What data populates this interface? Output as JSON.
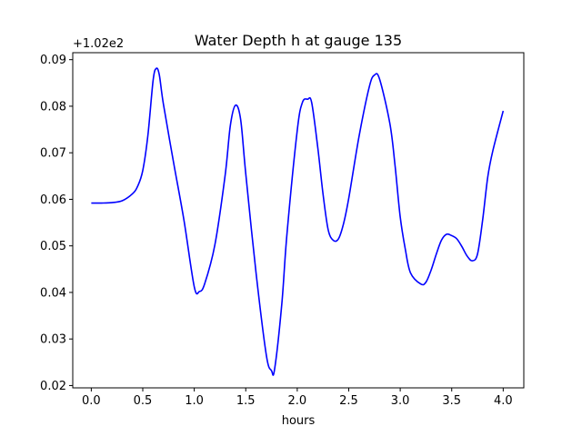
{
  "chart_data": {
    "type": "line",
    "title": "Water Depth h at gauge 135",
    "xlabel": "hours",
    "ylabel": "",
    "y_offset_label": "+1.02e2",
    "xlim": [
      -0.18,
      4.2
    ],
    "ylim": [
      0.0195,
      0.0915
    ],
    "x_ticks": [
      0.0,
      0.5,
      1.0,
      1.5,
      2.0,
      2.5,
      3.0,
      3.5,
      4.0
    ],
    "x_tick_labels": [
      "0.0",
      "0.5",
      "1.0",
      "1.5",
      "2.0",
      "2.5",
      "3.0",
      "3.5",
      "4.0"
    ],
    "y_ticks": [
      0.02,
      0.03,
      0.04,
      0.05,
      0.06,
      0.07,
      0.08,
      0.09
    ],
    "y_tick_labels": [
      "0.02",
      "0.03",
      "0.04",
      "0.05",
      "0.06",
      "0.07",
      "0.08",
      "0.09"
    ],
    "grid": false,
    "line_color": "#0000ff",
    "series": [
      {
        "x": [
          0.0,
          0.1,
          0.2,
          0.3,
          0.4,
          0.45,
          0.5,
          0.55,
          0.6,
          0.63,
          0.66,
          0.7,
          0.8,
          0.9,
          1.0,
          1.05,
          1.1,
          1.2,
          1.3,
          1.35,
          1.4,
          1.45,
          1.5,
          1.6,
          1.7,
          1.75,
          1.78,
          1.85,
          1.9,
          2.0,
          2.05,
          2.1,
          2.14,
          2.2,
          2.25,
          2.3,
          2.35,
          2.4,
          2.45,
          2.5,
          2.6,
          2.7,
          2.75,
          2.8,
          2.9,
          2.95,
          3.0,
          3.05,
          3.1,
          3.2,
          3.25,
          3.3,
          3.35,
          3.4,
          3.45,
          3.5,
          3.55,
          3.6,
          3.65,
          3.7,
          3.75,
          3.8,
          3.85,
          3.9,
          4.0
        ],
        "y": [
          0.0592,
          0.0592,
          0.0593,
          0.0597,
          0.0612,
          0.0628,
          0.0662,
          0.0738,
          0.0855,
          0.0881,
          0.0868,
          0.0805,
          0.0678,
          0.0555,
          0.0412,
          0.0402,
          0.0418,
          0.0502,
          0.0652,
          0.0758,
          0.0802,
          0.0772,
          0.0655,
          0.0442,
          0.0265,
          0.0232,
          0.0235,
          0.0375,
          0.0525,
          0.0748,
          0.0808,
          0.0815,
          0.0808,
          0.071,
          0.0612,
          0.0535,
          0.0512,
          0.0515,
          0.0548,
          0.0602,
          0.0735,
          0.0842,
          0.0867,
          0.0858,
          0.0762,
          0.0672,
          0.0562,
          0.0492,
          0.0442,
          0.0418,
          0.0422,
          0.0448,
          0.0482,
          0.0512,
          0.0525,
          0.0522,
          0.0515,
          0.0498,
          0.0478,
          0.0468,
          0.0482,
          0.0555,
          0.0648,
          0.0705,
          0.079
        ]
      }
    ]
  }
}
